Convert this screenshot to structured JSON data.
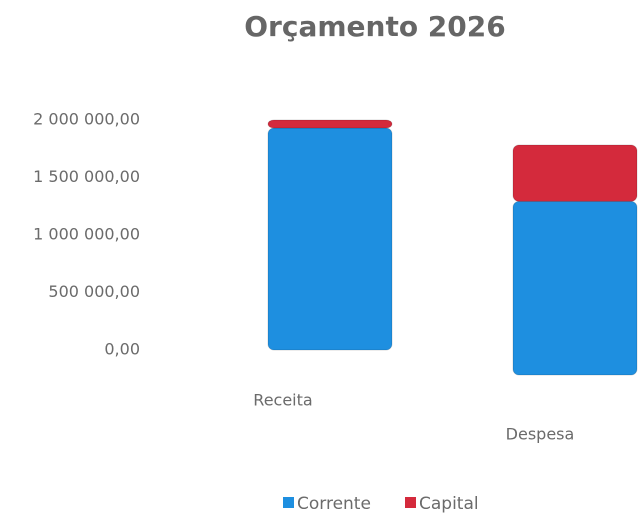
{
  "chart_data": {
    "type": "bar",
    "stacked": true,
    "title": "Orçamento 2026",
    "categories": [
      "Receita",
      "Despesa"
    ],
    "series": [
      {
        "name": "Corrente",
        "color": "#1e8fe0",
        "values": [
          1930000,
          1510000
        ]
      },
      {
        "name": "Capital",
        "color": "#d42a3c",
        "values": [
          70000,
          490000
        ]
      }
    ],
    "ylim": [
      0,
      2000000
    ],
    "yticks": [
      {
        "value": 0,
        "label": "0,00"
      },
      {
        "value": 500000,
        "label": "500 000,00"
      },
      {
        "value": 1000000,
        "label": "1 000 000,00"
      },
      {
        "value": 1500000,
        "label": "1 500 000,00"
      },
      {
        "value": 2000000,
        "label": "2 000 000,00"
      }
    ],
    "grid": false,
    "legend": "bottom"
  }
}
